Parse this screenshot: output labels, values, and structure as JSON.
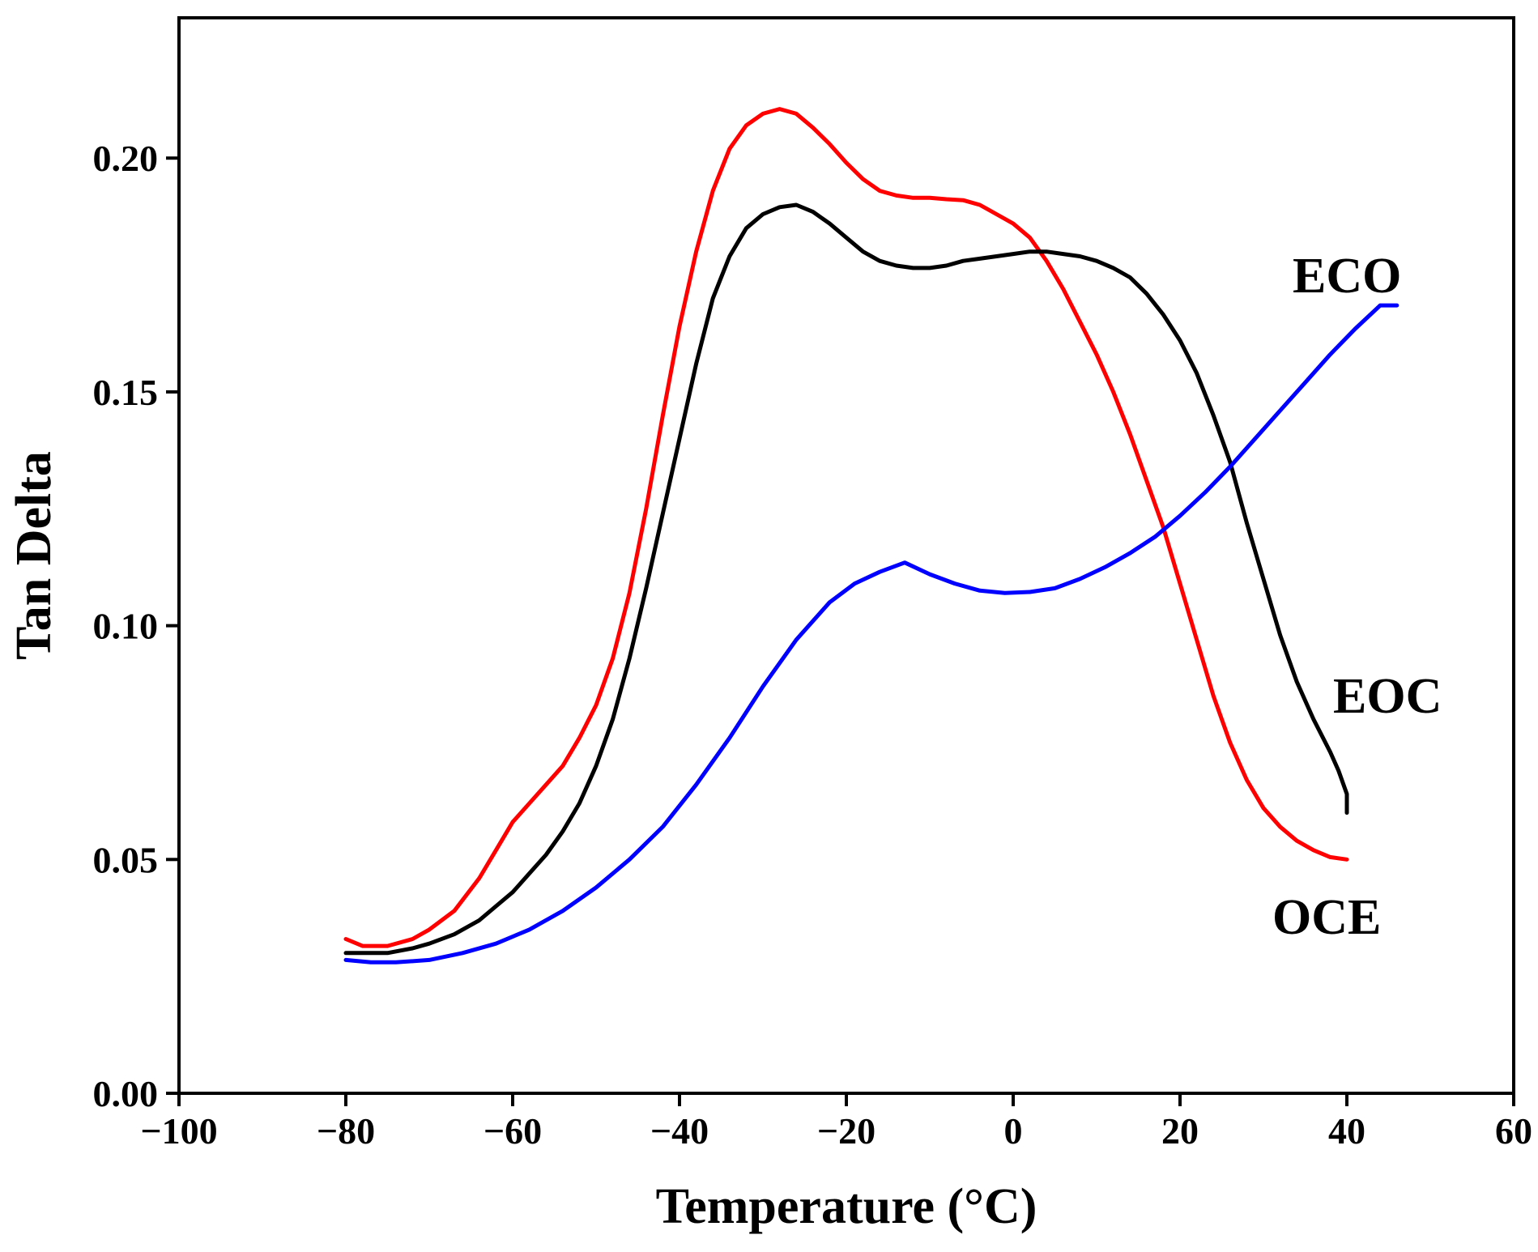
{
  "chart_data": {
    "type": "line",
    "title": "",
    "xlabel": "Temperature (°C)",
    "ylabel": "Tan Delta",
    "xlim": [
      -100,
      60
    ],
    "ylim": [
      0.0,
      0.23
    ],
    "xticks": [
      -100,
      -80,
      -60,
      -40,
      -20,
      0,
      20,
      40,
      60
    ],
    "xtick_labels": [
      "−100",
      "−80",
      "−60",
      "−40",
      "−20",
      "0",
      "20",
      "40",
      "60"
    ],
    "yticks": [
      0.0,
      0.05,
      0.1,
      0.15,
      0.2
    ],
    "ytick_labels": [
      "0.00",
      "0.05",
      "0.10",
      "0.15",
      "0.20"
    ],
    "grid": false,
    "legend": "none (inline labels)",
    "series": [
      {
        "name": "OCE",
        "color": "#ff0000",
        "points": [
          [
            -80,
            0.033
          ],
          [
            -78,
            0.0315
          ],
          [
            -75,
            0.0315
          ],
          [
            -72,
            0.033
          ],
          [
            -70,
            0.035
          ],
          [
            -67,
            0.039
          ],
          [
            -64,
            0.046
          ],
          [
            -62,
            0.052
          ],
          [
            -60,
            0.058
          ],
          [
            -58,
            0.062
          ],
          [
            -56,
            0.066
          ],
          [
            -54,
            0.07
          ],
          [
            -52,
            0.076
          ],
          [
            -50,
            0.083
          ],
          [
            -48,
            0.093
          ],
          [
            -46,
            0.107
          ],
          [
            -44,
            0.125
          ],
          [
            -42,
            0.145
          ],
          [
            -40,
            0.164
          ],
          [
            -38,
            0.18
          ],
          [
            -36,
            0.193
          ],
          [
            -34,
            0.202
          ],
          [
            -32,
            0.207
          ],
          [
            -30,
            0.2095
          ],
          [
            -28,
            0.2105
          ],
          [
            -26,
            0.2095
          ],
          [
            -24,
            0.2065
          ],
          [
            -22,
            0.203
          ],
          [
            -20,
            0.199
          ],
          [
            -18,
            0.1955
          ],
          [
            -16,
            0.193
          ],
          [
            -14,
            0.192
          ],
          [
            -12,
            0.1915
          ],
          [
            -10,
            0.1915
          ],
          [
            -8,
            0.1912
          ],
          [
            -6,
            0.191
          ],
          [
            -4,
            0.19
          ],
          [
            -2,
            0.188
          ],
          [
            0,
            0.186
          ],
          [
            2,
            0.183
          ],
          [
            4,
            0.178
          ],
          [
            6,
            0.172
          ],
          [
            8,
            0.165
          ],
          [
            10,
            0.158
          ],
          [
            12,
            0.15
          ],
          [
            14,
            0.141
          ],
          [
            16,
            0.131
          ],
          [
            18,
            0.121
          ],
          [
            20,
            0.109
          ],
          [
            22,
            0.097
          ],
          [
            24,
            0.085
          ],
          [
            26,
            0.075
          ],
          [
            28,
            0.067
          ],
          [
            30,
            0.061
          ],
          [
            32,
            0.057
          ],
          [
            34,
            0.054
          ],
          [
            36,
            0.052
          ],
          [
            38,
            0.0505
          ],
          [
            40,
            0.05
          ]
        ],
        "label_text": "OCE"
      },
      {
        "name": "EOC",
        "color": "#000000",
        "points": [
          [
            -80,
            0.03
          ],
          [
            -78,
            0.03
          ],
          [
            -75,
            0.03
          ],
          [
            -72,
            0.031
          ],
          [
            -70,
            0.032
          ],
          [
            -67,
            0.034
          ],
          [
            -64,
            0.037
          ],
          [
            -62,
            0.04
          ],
          [
            -60,
            0.043
          ],
          [
            -58,
            0.047
          ],
          [
            -56,
            0.051
          ],
          [
            -54,
            0.056
          ],
          [
            -52,
            0.062
          ],
          [
            -50,
            0.07
          ],
          [
            -48,
            0.08
          ],
          [
            -46,
            0.093
          ],
          [
            -44,
            0.108
          ],
          [
            -42,
            0.124
          ],
          [
            -40,
            0.14
          ],
          [
            -38,
            0.156
          ],
          [
            -36,
            0.17
          ],
          [
            -34,
            0.179
          ],
          [
            -32,
            0.185
          ],
          [
            -30,
            0.188
          ],
          [
            -28,
            0.1895
          ],
          [
            -26,
            0.19
          ],
          [
            -24,
            0.1885
          ],
          [
            -22,
            0.186
          ],
          [
            -20,
            0.183
          ],
          [
            -18,
            0.18
          ],
          [
            -16,
            0.178
          ],
          [
            -14,
            0.177
          ],
          [
            -12,
            0.1765
          ],
          [
            -10,
            0.1765
          ],
          [
            -8,
            0.177
          ],
          [
            -6,
            0.178
          ],
          [
            -4,
            0.1785
          ],
          [
            -2,
            0.179
          ],
          [
            0,
            0.1795
          ],
          [
            2,
            0.18
          ],
          [
            4,
            0.18
          ],
          [
            6,
            0.1795
          ],
          [
            8,
            0.179
          ],
          [
            10,
            0.178
          ],
          [
            12,
            0.1765
          ],
          [
            14,
            0.1745
          ],
          [
            16,
            0.171
          ],
          [
            18,
            0.1665
          ],
          [
            20,
            0.161
          ],
          [
            22,
            0.154
          ],
          [
            24,
            0.145
          ],
          [
            26,
            0.135
          ],
          [
            28,
            0.122
          ],
          [
            30,
            0.11
          ],
          [
            32,
            0.098
          ],
          [
            34,
            0.088
          ],
          [
            36,
            0.08
          ],
          [
            38,
            0.073
          ],
          [
            39,
            0.069
          ],
          [
            40,
            0.064
          ],
          [
            40,
            0.06
          ]
        ],
        "label_text": "EOC"
      },
      {
        "name": "ECO",
        "color": "#0000ff",
        "points": [
          [
            -80,
            0.0285
          ],
          [
            -77,
            0.028
          ],
          [
            -74,
            0.028
          ],
          [
            -70,
            0.0285
          ],
          [
            -66,
            0.03
          ],
          [
            -62,
            0.032
          ],
          [
            -58,
            0.035
          ],
          [
            -54,
            0.039
          ],
          [
            -50,
            0.044
          ],
          [
            -46,
            0.05
          ],
          [
            -42,
            0.057
          ],
          [
            -38,
            0.066
          ],
          [
            -34,
            0.076
          ],
          [
            -30,
            0.087
          ],
          [
            -26,
            0.097
          ],
          [
            -22,
            0.105
          ],
          [
            -19,
            0.109
          ],
          [
            -16,
            0.1115
          ],
          [
            -13,
            0.1135
          ],
          [
            -10,
            0.111
          ],
          [
            -7,
            0.109
          ],
          [
            -4,
            0.1075
          ],
          [
            -1,
            0.107
          ],
          [
            2,
            0.1072
          ],
          [
            5,
            0.108
          ],
          [
            8,
            0.11
          ],
          [
            11,
            0.1125
          ],
          [
            14,
            0.1155
          ],
          [
            17,
            0.119
          ],
          [
            20,
            0.1235
          ],
          [
            23,
            0.1285
          ],
          [
            26,
            0.134
          ],
          [
            29,
            0.14
          ],
          [
            32,
            0.146
          ],
          [
            35,
            0.152
          ],
          [
            38,
            0.158
          ],
          [
            41,
            0.1635
          ],
          [
            44,
            0.1685
          ],
          [
            46,
            0.1685
          ]
        ],
        "label_text": "ECO"
      }
    ]
  }
}
